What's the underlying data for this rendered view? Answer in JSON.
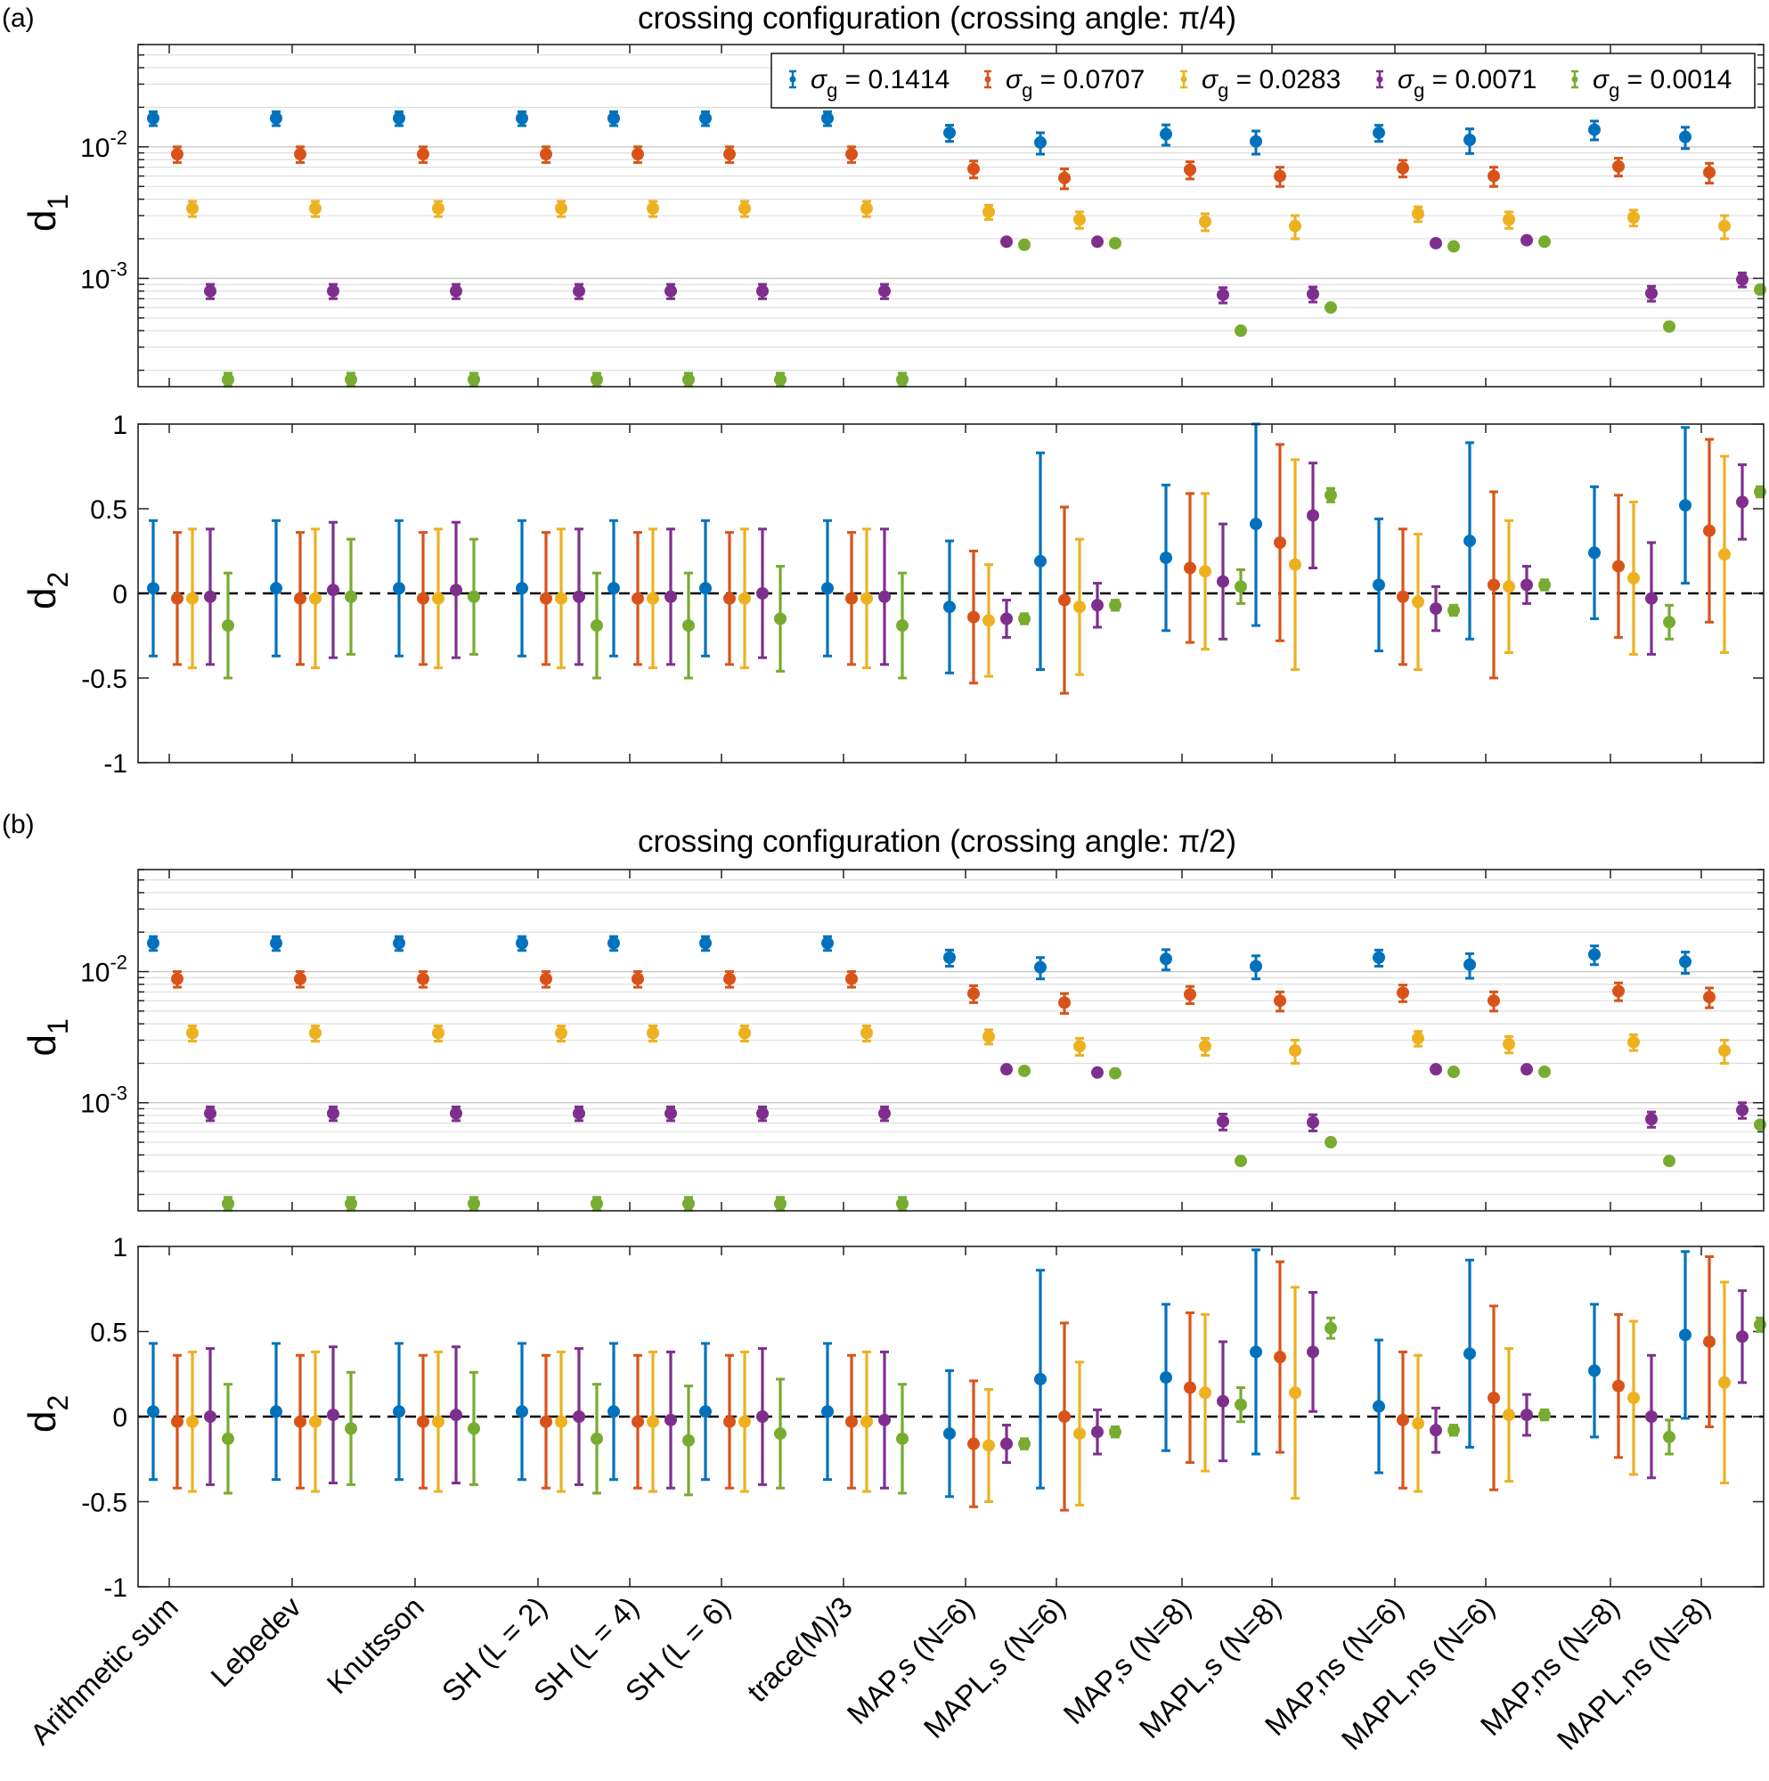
{
  "panel_labels": [
    "(a)",
    "(b)"
  ],
  "legend": {
    "symbol": "σ",
    "subscript": "g",
    "entries": [
      "= 0.1414",
      "= 0.0707",
      "= 0.0283",
      "= 0.0071",
      "= 0.0014"
    ]
  },
  "colors": [
    "#0072BD",
    "#D95319",
    "#EDB120",
    "#7E2F8E",
    "#77AC30"
  ],
  "y_axis": {
    "d1_symbol": "d",
    "d1_sub": "1",
    "d2_symbol": "d",
    "d2_sub": "2",
    "d1_ticks": [
      {
        "base": "10",
        "exp": "-2"
      },
      {
        "base": "10",
        "exp": "-3"
      }
    ],
    "d2_ticks": [
      "1",
      "0.5",
      "0",
      "-0.5",
      "-1"
    ]
  },
  "chart_data": [
    {
      "type": "errorbar",
      "panel": "(a)",
      "title": "crossing configuration (crossing angle:  π/4)",
      "categories": [
        "Arithmetic sum",
        "Lebedev",
        "Knutsson",
        "SH (L = 2)",
        "SH (L = 4)",
        "SH (L = 6)",
        "trace(M)/3",
        "MAP,s (N=6)",
        "MAPL,s (N=6)",
        "MAP,s (N=8)",
        "MAPL,s (N=8)",
        "MAP,ns (N=6)",
        "MAPL,ns (N=6)",
        "MAP,ns (N=8)",
        "MAPL,ns (N=8)"
      ],
      "series_names": [
        "σg = 0.1414",
        "σg = 0.0707",
        "σg = 0.0283",
        "σg = 0.0071",
        "σg = 0.0014"
      ],
      "d1": {
        "yscale": "log",
        "ylim": [
          0.00015,
          0.06
        ],
        "values": [
          [
            0.0165,
            0.0165,
            0.0165,
            0.0165,
            0.0165,
            0.0165,
            0.0165,
            0.0128,
            0.0108,
            0.0125,
            0.011,
            0.0128,
            0.0113,
            0.0135,
            0.0119
          ],
          [
            0.0088,
            0.0088,
            0.0088,
            0.0088,
            0.0088,
            0.0088,
            0.0088,
            0.0068,
            0.0058,
            0.0067,
            0.006,
            0.0069,
            0.006,
            0.0071,
            0.0064
          ],
          [
            0.0034,
            0.0034,
            0.0034,
            0.0034,
            0.0034,
            0.0034,
            0.0034,
            0.0032,
            0.0028,
            0.0027,
            0.0025,
            0.0031,
            0.0028,
            0.0029,
            0.0025
          ],
          [
            0.0008,
            0.0008,
            0.0008,
            0.0008,
            0.0008,
            0.0008,
            0.0008,
            0.0019,
            0.0019,
            0.00075,
            0.00076,
            0.00185,
            0.00195,
            0.00077,
            0.00098
          ],
          [
            0.00017,
            0.00017,
            0.00017,
            0.00017,
            0.00017,
            0.00017,
            0.00017,
            0.0018,
            0.00185,
            0.0004,
            0.0006,
            0.00175,
            0.0019,
            0.00043,
            0.00082
          ]
        ],
        "errors": [
          [
            0.002,
            0.002,
            0.002,
            0.002,
            0.002,
            0.002,
            0.002,
            0.0018,
            0.002,
            0.0022,
            0.0022,
            0.0018,
            0.0024,
            0.0022,
            0.0022
          ],
          [
            0.0012,
            0.0012,
            0.0012,
            0.0012,
            0.0012,
            0.0012,
            0.0012,
            0.001,
            0.001,
            0.001,
            0.001,
            0.001,
            0.001,
            0.0011,
            0.0011
          ],
          [
            0.00045,
            0.00045,
            0.00045,
            0.00045,
            0.00045,
            0.00045,
            0.00045,
            0.0004,
            0.0004,
            0.0004,
            0.0005,
            0.0004,
            0.0004,
            0.0004,
            0.0005
          ],
          [
            0.0001,
            0.0001,
            0.0001,
            0.0001,
            0.0001,
            0.0001,
            0.0001,
            0,
            0,
            0.0001,
            0.0001,
            0,
            0,
            0.0001,
            0.00012
          ],
          [
            2e-05,
            2e-05,
            2e-05,
            2e-05,
            2e-05,
            2e-05,
            2e-05,
            0,
            0,
            0,
            0,
            0,
            0,
            0,
            0
          ]
        ]
      },
      "d2": {
        "ylim": [
          -1,
          1
        ],
        "values": [
          [
            0.03,
            0.03,
            0.03,
            0.03,
            0.03,
            0.03,
            0.03,
            -0.08,
            0.19,
            0.21,
            0.41,
            0.05,
            0.31,
            0.24,
            0.52
          ],
          [
            -0.03,
            -0.03,
            -0.03,
            -0.03,
            -0.03,
            -0.03,
            -0.03,
            -0.14,
            -0.04,
            0.15,
            0.3,
            -0.02,
            0.05,
            0.16,
            0.37
          ],
          [
            -0.03,
            -0.03,
            -0.03,
            -0.03,
            -0.03,
            -0.03,
            -0.03,
            -0.16,
            -0.08,
            0.13,
            0.17,
            -0.05,
            0.04,
            0.09,
            0.23
          ],
          [
            -0.02,
            0.02,
            0.02,
            -0.02,
            -0.02,
            0,
            -0.02,
            -0.15,
            -0.07,
            0.07,
            0.46,
            -0.09,
            0.05,
            -0.03,
            0.54
          ],
          [
            -0.19,
            -0.02,
            -0.02,
            -0.19,
            -0.19,
            -0.15,
            -0.19,
            -0.15,
            -0.07,
            0.04,
            0.58,
            -0.1,
            0.05,
            -0.17,
            0.6
          ]
        ],
        "errors": [
          [
            0.4,
            0.4,
            0.4,
            0.4,
            0.4,
            0.4,
            0.4,
            0.39,
            0.64,
            0.43,
            0.6,
            0.39,
            0.58,
            0.39,
            0.46
          ],
          [
            0.39,
            0.39,
            0.39,
            0.39,
            0.39,
            0.39,
            0.39,
            0.39,
            0.55,
            0.44,
            0.58,
            0.4,
            0.55,
            0.42,
            0.54
          ],
          [
            0.41,
            0.41,
            0.41,
            0.41,
            0.41,
            0.41,
            0.41,
            0.33,
            0.4,
            0.46,
            0.62,
            0.4,
            0.39,
            0.45,
            0.58
          ],
          [
            0.4,
            0.4,
            0.4,
            0.4,
            0.4,
            0.38,
            0.4,
            0.11,
            0.13,
            0.34,
            0.31,
            0.13,
            0.11,
            0.33,
            0.22
          ],
          [
            0.31,
            0.34,
            0.34,
            0.31,
            0.31,
            0.31,
            0.31,
            0.03,
            0.03,
            0.1,
            0.04,
            0.03,
            0.03,
            0.1,
            0.03
          ]
        ]
      }
    },
    {
      "type": "errorbar",
      "panel": "(b)",
      "title": "crossing configuration (crossing angle:  π/2)",
      "categories": [
        "Arithmetic sum",
        "Lebedev",
        "Knutsson",
        "SH (L = 2)",
        "SH (L = 4)",
        "SH (L = 6)",
        "trace(M)/3",
        "MAP,s (N=6)",
        "MAPL,s (N=6)",
        "MAP,s (N=8)",
        "MAPL,s (N=8)",
        "MAP,ns (N=6)",
        "MAPL,ns (N=6)",
        "MAP,ns (N=8)",
        "MAPL,ns (N=8)"
      ],
      "series_names": [
        "σg = 0.1414",
        "σg = 0.0707",
        "σg = 0.0283",
        "σg = 0.0071",
        "σg = 0.0014"
      ],
      "d1": {
        "yscale": "log",
        "ylim": [
          0.00015,
          0.06
        ],
        "values": [
          [
            0.0165,
            0.0165,
            0.0165,
            0.0165,
            0.0165,
            0.0165,
            0.0165,
            0.0128,
            0.0108,
            0.0125,
            0.011,
            0.0128,
            0.0113,
            0.0135,
            0.0119
          ],
          [
            0.0088,
            0.0088,
            0.0088,
            0.0088,
            0.0088,
            0.0088,
            0.0088,
            0.0068,
            0.0058,
            0.0067,
            0.006,
            0.0069,
            0.006,
            0.0071,
            0.0064
          ],
          [
            0.0034,
            0.0034,
            0.0034,
            0.0034,
            0.0034,
            0.0034,
            0.0034,
            0.0032,
            0.0027,
            0.0027,
            0.0025,
            0.0031,
            0.0028,
            0.0029,
            0.0025
          ],
          [
            0.00083,
            0.00083,
            0.00083,
            0.00083,
            0.00083,
            0.00083,
            0.00083,
            0.0018,
            0.0017,
            0.00072,
            0.00071,
            0.0018,
            0.0018,
            0.00075,
            0.00088
          ],
          [
            0.00017,
            0.00017,
            0.00017,
            0.00017,
            0.00017,
            0.00017,
            0.00017,
            0.00175,
            0.00168,
            0.00036,
            0.0005,
            0.00172,
            0.00172,
            0.00036,
            0.00068
          ]
        ],
        "errors": [
          [
            0.002,
            0.002,
            0.002,
            0.002,
            0.002,
            0.002,
            0.002,
            0.0018,
            0.002,
            0.0022,
            0.0022,
            0.0018,
            0.0024,
            0.0022,
            0.0022
          ],
          [
            0.0012,
            0.0012,
            0.0012,
            0.0012,
            0.0012,
            0.0012,
            0.0012,
            0.001,
            0.001,
            0.001,
            0.001,
            0.001,
            0.001,
            0.0011,
            0.0011
          ],
          [
            0.00045,
            0.00045,
            0.00045,
            0.00045,
            0.00045,
            0.00045,
            0.00045,
            0.0004,
            0.0004,
            0.0004,
            0.0005,
            0.0004,
            0.0004,
            0.0004,
            0.0005
          ],
          [
            0.0001,
            0.0001,
            0.0001,
            0.0001,
            0.0001,
            0.0001,
            0.0001,
            0,
            0,
            0.0001,
            0.0001,
            0,
            0,
            0.0001,
            0.00012
          ],
          [
            2e-05,
            2e-05,
            2e-05,
            2e-05,
            2e-05,
            2e-05,
            2e-05,
            0,
            0,
            0,
            0,
            0,
            0,
            0,
            0
          ]
        ]
      },
      "d2": {
        "ylim": [
          -1,
          1
        ],
        "values": [
          [
            0.03,
            0.03,
            0.03,
            0.03,
            0.03,
            0.03,
            0.03,
            -0.1,
            0.22,
            0.23,
            0.38,
            0.06,
            0.37,
            0.27,
            0.48
          ],
          [
            -0.03,
            -0.03,
            -0.03,
            -0.03,
            -0.03,
            -0.03,
            -0.03,
            -0.16,
            0,
            0.17,
            0.35,
            -0.02,
            0.11,
            0.18,
            0.44
          ],
          [
            -0.03,
            -0.03,
            -0.03,
            -0.03,
            -0.03,
            -0.03,
            -0.03,
            -0.17,
            -0.1,
            0.14,
            0.14,
            -0.04,
            0.01,
            0.11,
            0.2
          ],
          [
            0,
            0.01,
            0.01,
            0,
            -0.02,
            0,
            -0.02,
            -0.16,
            -0.09,
            0.09,
            0.38,
            -0.08,
            0.01,
            0,
            0.47
          ],
          [
            -0.13,
            -0.07,
            -0.07,
            -0.13,
            -0.14,
            -0.1,
            -0.13,
            -0.16,
            -0.09,
            0.07,
            0.52,
            -0.08,
            0.01,
            -0.12,
            0.54
          ]
        ],
        "errors": [
          [
            0.4,
            0.4,
            0.4,
            0.4,
            0.4,
            0.4,
            0.4,
            0.37,
            0.64,
            0.43,
            0.6,
            0.39,
            0.55,
            0.39,
            0.49
          ],
          [
            0.39,
            0.39,
            0.39,
            0.39,
            0.39,
            0.39,
            0.39,
            0.37,
            0.55,
            0.44,
            0.56,
            0.4,
            0.54,
            0.42,
            0.5
          ],
          [
            0.41,
            0.41,
            0.41,
            0.41,
            0.41,
            0.41,
            0.41,
            0.33,
            0.42,
            0.46,
            0.62,
            0.4,
            0.39,
            0.45,
            0.59
          ],
          [
            0.4,
            0.4,
            0.4,
            0.4,
            0.4,
            0.4,
            0.4,
            0.11,
            0.13,
            0.35,
            0.35,
            0.13,
            0.12,
            0.36,
            0.27
          ],
          [
            0.32,
            0.33,
            0.33,
            0.32,
            0.32,
            0.32,
            0.32,
            0.03,
            0.03,
            0.1,
            0.06,
            0.03,
            0.03,
            0.1,
            0.04
          ]
        ]
      }
    }
  ]
}
